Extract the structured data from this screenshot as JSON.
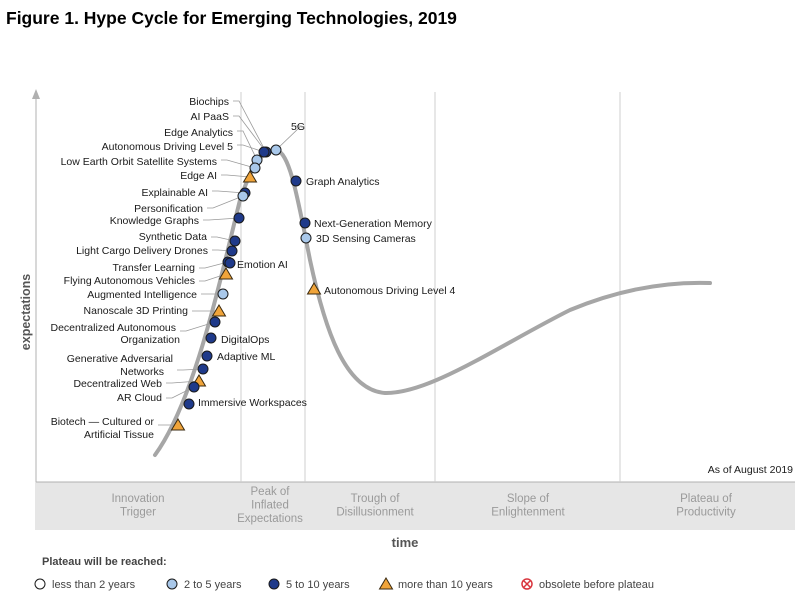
{
  "title": "Figure 1. Hype Cycle for Emerging Technologies, 2019",
  "chart_data": {
    "type": "line",
    "title": "Figure 1. Hype Cycle for Emerging Technologies, 2019",
    "xlabel": "time",
    "ylabel": "expectations",
    "as_of": "As of August 2019",
    "phases": [
      {
        "name": "trigger",
        "lines": [
          "Innovation",
          "Trigger"
        ]
      },
      {
        "name": "peak",
        "lines": [
          "Peak of",
          "Inflated",
          "Expectations"
        ]
      },
      {
        "name": "trough",
        "lines": [
          "Trough of",
          "Disillusionment"
        ]
      },
      {
        "name": "slope",
        "lines": [
          "Slope of",
          "Enlightenment"
        ]
      },
      {
        "name": "plateau",
        "lines": [
          "Plateau of",
          "Productivity"
        ]
      }
    ],
    "legend_title": "Plateau will be reached:",
    "legend": [
      {
        "key": "lt2",
        "label": "less than 2 years"
      },
      {
        "key": "2to5",
        "label": "2 to 5 years"
      },
      {
        "key": "5to10",
        "label": "5 to 10 years"
      },
      {
        "key": "gt10",
        "label": "more than 10 years"
      },
      {
        "key": "obsolete",
        "label": "obsolete before plateau"
      }
    ],
    "technologies": [
      {
        "name": "Biochips",
        "cat": "5to10"
      },
      {
        "name": "AI PaaS",
        "cat": "5to10"
      },
      {
        "name": "5G",
        "cat": "2to5"
      },
      {
        "name": "Edge Analytics",
        "cat": "2to5"
      },
      {
        "name": "Autonomous Driving Level 5",
        "cat": "5to10"
      },
      {
        "name": "Low Earth Orbit Satellite Systems",
        "cat": "2to5"
      },
      {
        "name": "Edge AI",
        "cat": "gt10"
      },
      {
        "name": "Explainable AI",
        "cat": "5to10"
      },
      {
        "name": "Graph Analytics",
        "cat": "5to10"
      },
      {
        "name": "Personification",
        "cat": "2to5"
      },
      {
        "name": "Knowledge Graphs",
        "cat": "5to10"
      },
      {
        "name": "Next-Generation Memory",
        "cat": "5to10"
      },
      {
        "name": "3D Sensing Cameras",
        "cat": "2to5"
      },
      {
        "name": "Synthetic Data",
        "cat": "5to10"
      },
      {
        "name": "Light Cargo Delivery Drones",
        "cat": "5to10"
      },
      {
        "name": "Transfer Learning",
        "cat": "5to10"
      },
      {
        "name": "Emotion AI",
        "cat": "5to10"
      },
      {
        "name": "Flying Autonomous Vehicles",
        "cat": "gt10"
      },
      {
        "name": "Autonomous Driving Level 4",
        "cat": "gt10"
      },
      {
        "name": "Augmented Intelligence",
        "cat": "2to5"
      },
      {
        "name": "Nanoscale 3D Printing",
        "cat": "gt10"
      },
      {
        "name": "Decentralized Autonomous Organization",
        "cat": "5to10"
      },
      {
        "name": "DigitalOps",
        "cat": "5to10"
      },
      {
        "name": "Adaptive ML",
        "cat": "5to10"
      },
      {
        "name": "Generative Adversarial Networks",
        "cat": "5to10"
      },
      {
        "name": "Decentralized Web",
        "cat": "gt10"
      },
      {
        "name": "AR Cloud",
        "cat": "5to10"
      },
      {
        "name": "Immersive Workspaces",
        "cat": "5to10"
      },
      {
        "name": "Biotech — Cultured or Artificial Tissue",
        "cat": "gt10"
      }
    ]
  },
  "colors": {
    "curve": "#a6a6a6",
    "dark_blue": "#1f3a8a",
    "light_blue": "#a9c8ea",
    "orange": "#f0a43a",
    "obsolete": "#d9363e",
    "phase_band": "#e6e6e6"
  }
}
